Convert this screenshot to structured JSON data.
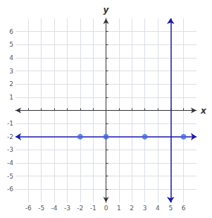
{
  "chart_data": {
    "type": "scatter",
    "xlabel": "x",
    "ylabel": "y",
    "xlim": [
      -7,
      7
    ],
    "ylim": [
      -7,
      7
    ],
    "xticks": [
      -6,
      -5,
      -4,
      -3,
      -2,
      -1,
      0,
      1,
      2,
      3,
      4,
      5,
      6
    ],
    "yticks": [
      -6,
      -5,
      -4,
      -3,
      -2,
      -1,
      1,
      2,
      3,
      4,
      5,
      6
    ],
    "grid": true,
    "x": [
      -2,
      0,
      3,
      6
    ],
    "values": [
      -2,
      -2,
      -2,
      -2
    ],
    "color": "#4169E1",
    "lines": [
      {
        "type": "vertical",
        "x": 5,
        "color": "#1a1aaa"
      },
      {
        "type": "horizontal",
        "y": -2,
        "color": "#1a1aaa"
      }
    ]
  }
}
